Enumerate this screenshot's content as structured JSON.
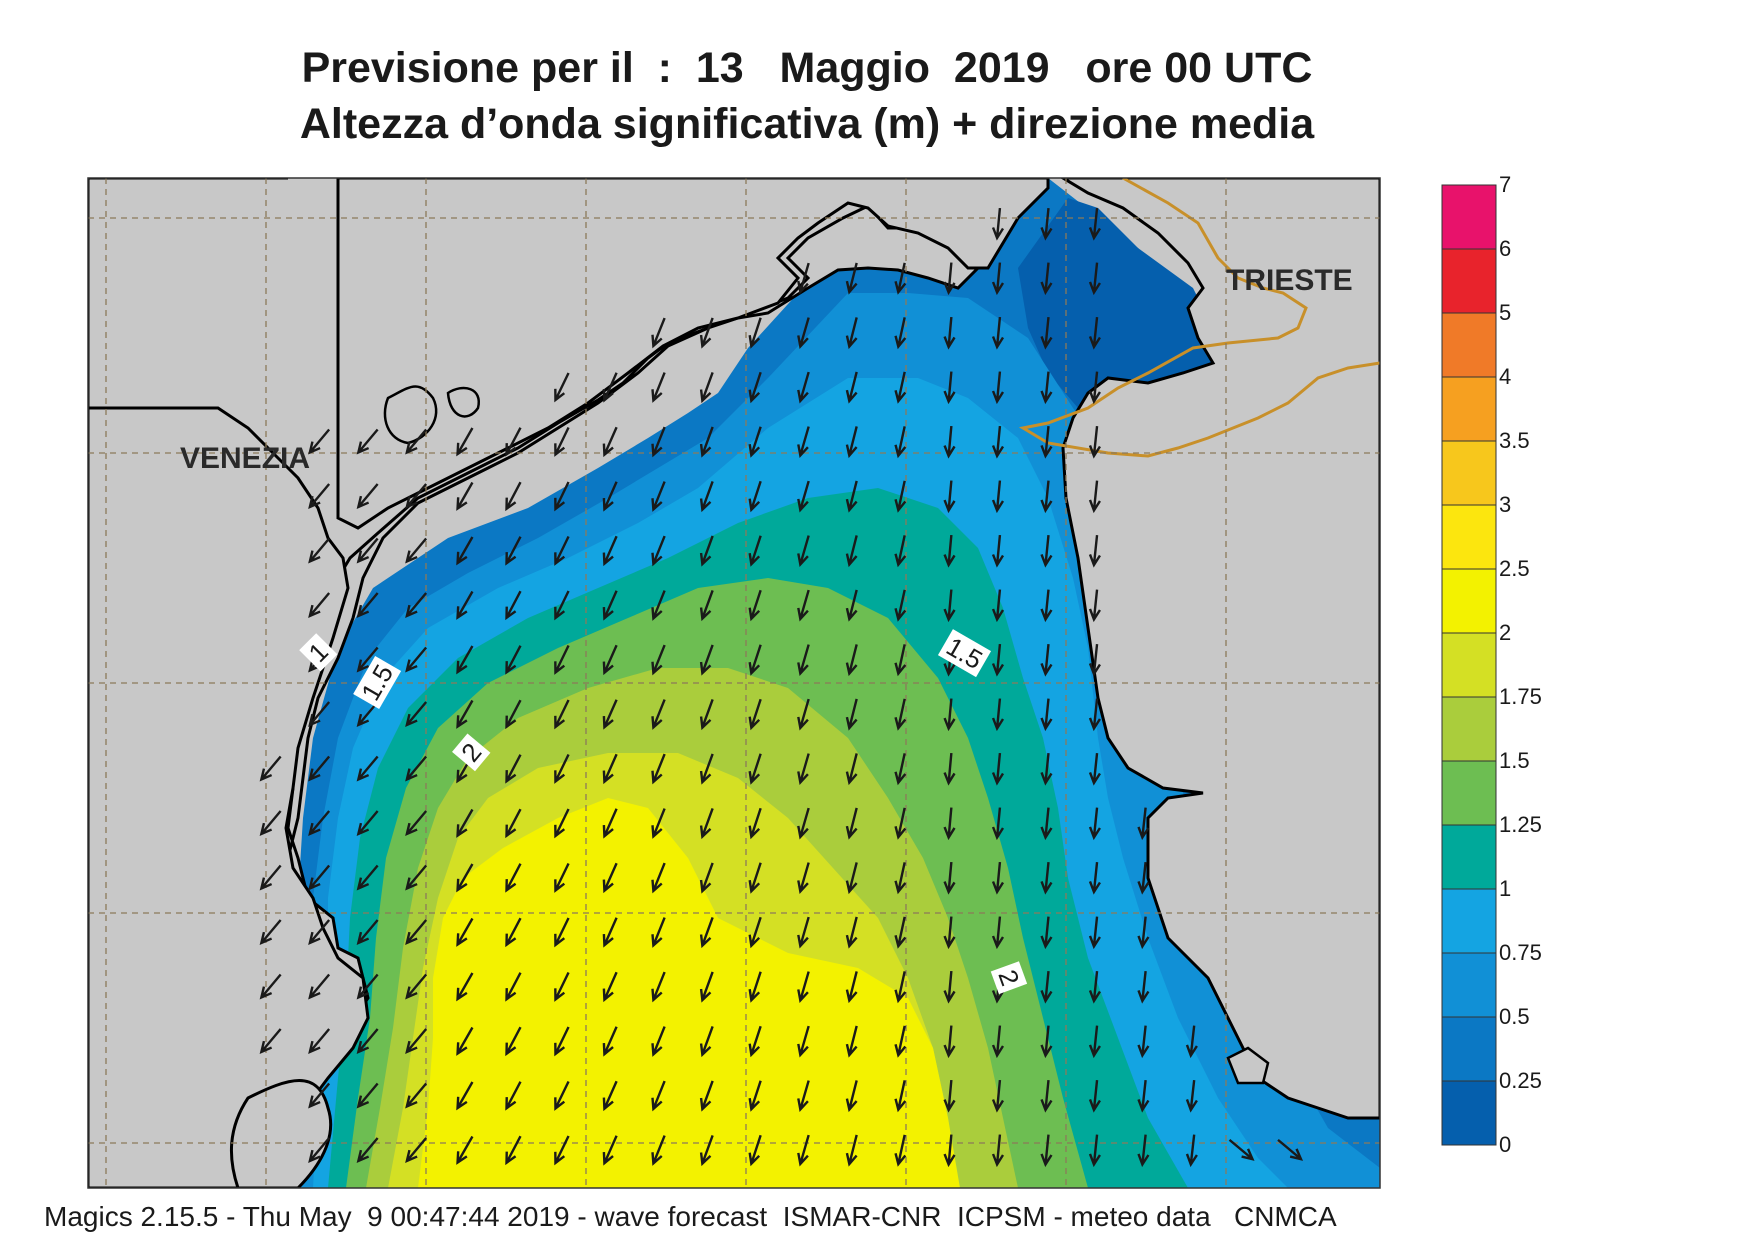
{
  "title_line1": "Previsione per il  :  13   Maggio  2019   ore 00 UTC",
  "title_line2": "Altezza d’onda significativa (m) + direzione media",
  "footer": "Magics 2.15.5 - Thu May  9 00:47:44 2019 - wave forecast  ISMAR-CNR  ICPSM - meteo data   CNMCA",
  "cities": [
    {
      "name": "VENEZIA"
    },
    {
      "name": "TRIESTE"
    }
  ],
  "contour_labels": [
    "1",
    "1.5",
    "1.5",
    "2",
    "2"
  ],
  "legend": {
    "ticks": [
      "7",
      "6",
      "5",
      "4",
      "3.5",
      "3",
      "2.5",
      "2",
      "1.75",
      "1.5",
      "1.25",
      "1",
      "0.75",
      "0.5",
      "0.25",
      "0"
    ],
    "colors": [
      "#e8126b",
      "#e8232c",
      "#f07a28",
      "#f6a020",
      "#f7c71c",
      "#fce60e",
      "#f3f200",
      "#d4e024",
      "#aacd3c",
      "#6dbe52",
      "#00a99a",
      "#14a4e2",
      "#1190d6",
      "#0b78c4",
      "#055fad"
    ]
  },
  "colors": {
    "land": "#c8c8c8",
    "coast": "#000000",
    "border": "#c8902a",
    "grid": "#8c7a5a",
    "arrow": "#1a1a1a"
  }
}
